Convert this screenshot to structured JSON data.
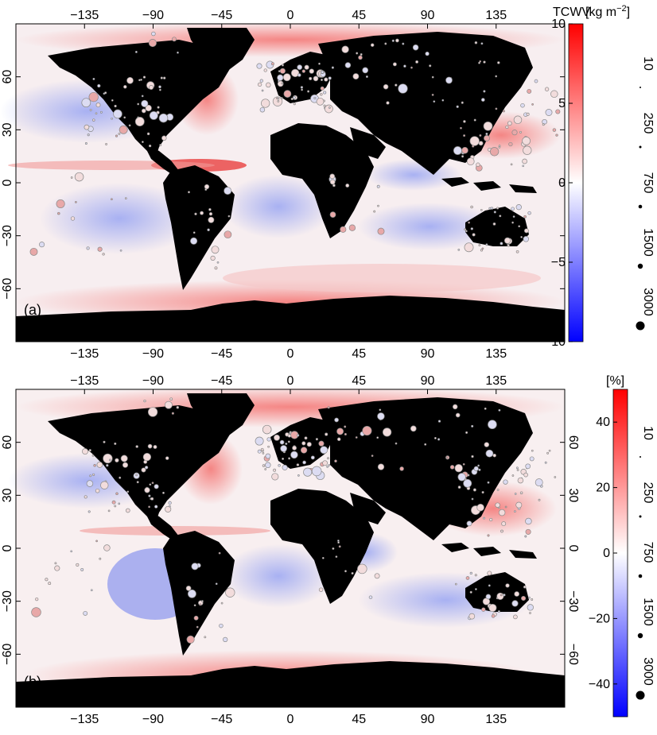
{
  "chart_data": [
    {
      "type": "heatmap",
      "panel_label": "(a)",
      "colorbar_title": "TCWV",
      "colorbar_unit": "[kg m",
      "colorbar_unit_sup": "−2",
      "colorbar_unit_close": "]",
      "colorbar_range": [
        -10,
        10
      ],
      "colorbar_ticks": [
        "10",
        "5",
        "0",
        "−5",
        "−10"
      ],
      "colorbar_tick_values": [
        10,
        5,
        0,
        -5,
        -10
      ],
      "size_legend": [
        "10",
        "250",
        "750",
        "1500",
        "3000"
      ],
      "x_ticks": [
        "−135",
        "−90",
        "−45",
        "0",
        "45",
        "90",
        "135"
      ],
      "x_tick_values": [
        -135,
        -90,
        -45,
        0,
        45,
        90,
        135
      ],
      "y_ticks": [
        "60",
        "30",
        "0",
        "−30",
        "−60"
      ],
      "y_tick_values": [
        60,
        30,
        0,
        -30,
        -60
      ],
      "xlim": [
        -180,
        180
      ],
      "ylim": [
        -90,
        90
      ],
      "colormap": {
        "low": "#0000ff",
        "mid": "#ffffff",
        "high": "#ff0000"
      },
      "land_color": "#000000"
    },
    {
      "type": "heatmap",
      "panel_label": "(b)",
      "colorbar_unit": "[%]",
      "colorbar_range": [
        -50,
        50
      ],
      "colorbar_ticks": [
        "40",
        "20",
        "0",
        "−20",
        "−40"
      ],
      "colorbar_tick_values": [
        40,
        20,
        0,
        -20,
        -40
      ],
      "size_legend": [
        "10",
        "250",
        "750",
        "1500",
        "3000"
      ],
      "x_ticks": [
        "−135",
        "−90",
        "−45",
        "0",
        "45",
        "90",
        "135"
      ],
      "x_tick_values": [
        -135,
        -90,
        -45,
        0,
        45,
        90,
        135
      ],
      "y_ticks": [
        "60",
        "30",
        "0",
        "−30",
        "−60"
      ],
      "y_tick_values": [
        60,
        30,
        0,
        -30,
        -60
      ],
      "xlim": [
        -180,
        180
      ],
      "ylim": [
        -90,
        90
      ],
      "colormap": {
        "low": "#0000ff",
        "mid": "#ffffff",
        "high": "#ff0000"
      },
      "land_color": "#000000"
    }
  ]
}
